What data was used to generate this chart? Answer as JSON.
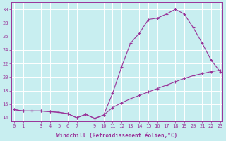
{
  "xlabel": "Windchill (Refroidissement éolien,°C)",
  "background_color": "#c8eef0",
  "line_color": "#993399",
  "grid_color": "#ffffff",
  "hours": [
    0,
    1,
    2,
    3,
    4,
    5,
    6,
    7,
    8,
    9,
    10,
    11,
    12,
    13,
    14,
    15,
    16,
    17,
    18,
    19,
    20,
    21,
    22,
    23
  ],
  "windchill": [
    15.2,
    15.0,
    15.0,
    15.0,
    14.9,
    14.8,
    14.6,
    14.0,
    14.5,
    13.9,
    14.4,
    17.6,
    21.5,
    25.0,
    26.5,
    28.5,
    28.7,
    29.3,
    30.0,
    29.3,
    27.3,
    25.0,
    22.5,
    20.8
  ],
  "temp": [
    15.2,
    15.0,
    15.0,
    15.0,
    14.9,
    14.8,
    14.6,
    14.0,
    14.5,
    13.9,
    14.4,
    15.5,
    16.2,
    16.8,
    17.3,
    17.8,
    18.3,
    18.8,
    19.3,
    19.8,
    20.2,
    20.5,
    20.8,
    21.0
  ],
  "ylim": [
    13.5,
    31
  ],
  "yticks": [
    14,
    16,
    18,
    20,
    22,
    24,
    26,
    28,
    30
  ],
  "xticks": [
    0,
    1,
    3,
    4,
    5,
    6,
    7,
    9,
    10,
    11,
    12,
    13,
    14,
    15,
    16,
    17,
    18,
    19,
    20,
    21,
    22,
    23
  ],
  "xlim": [
    -0.3,
    23.3
  ],
  "xlabel_fontsize": 5.5,
  "ylabel_fontsize": 5.5,
  "tick_label_fontsize": 5.0
}
